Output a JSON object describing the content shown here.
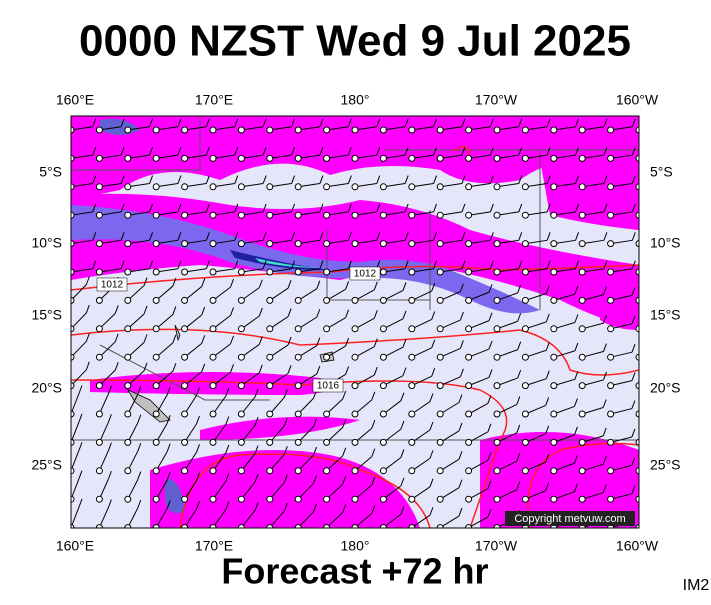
{
  "header": {
    "title": "0000 NZST Wed 9 Jul 2025"
  },
  "map": {
    "lon_labels": [
      "160°E",
      "170°E",
      "180°",
      "170°W",
      "160°W"
    ],
    "lat_labels": [
      "5°S",
      "10°S",
      "15°S",
      "20°S",
      "25°S"
    ],
    "isobar_labels": [
      "1012",
      "1012",
      "1016"
    ],
    "copyright": "Copyright metvuw.com"
  },
  "footer": {
    "text": "Forecast +72 hr",
    "code": "IM2"
  }
}
